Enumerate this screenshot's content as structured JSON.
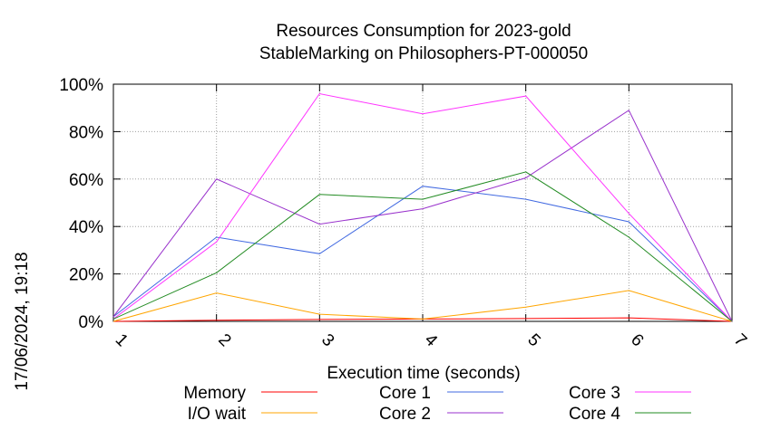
{
  "chart_data": {
    "type": "line",
    "title": "Resources Consumption for 2023-gold",
    "subtitle": "StableMarking on Philosophers-PT-000050",
    "xlabel": "Execution time (seconds)",
    "ylabel": "",
    "timestamp": "17/06/2024, 19:18",
    "x": [
      1,
      2,
      3,
      4,
      5,
      6,
      7
    ],
    "x_ticks": [
      "1",
      "2",
      "3",
      "4",
      "5",
      "6",
      "7"
    ],
    "y_ticks": [
      "0%",
      "20%",
      "40%",
      "60%",
      "80%",
      "100%"
    ],
    "ylim": [
      0,
      100
    ],
    "xlim": [
      1,
      7
    ],
    "grid": true,
    "legend_position": "bottom",
    "series": [
      {
        "name": "Memory",
        "color": "#ff0000",
        "values": [
          0,
          0.5,
          0.8,
          1,
          1.2,
          1.5,
          0
        ]
      },
      {
        "name": "I/O wait",
        "color": "#ffa500",
        "values": [
          0,
          12,
          3,
          1,
          6,
          13,
          0
        ]
      },
      {
        "name": "Core 1",
        "color": "#4169e1",
        "values": [
          2,
          35.5,
          28.5,
          57,
          51.5,
          42,
          0
        ]
      },
      {
        "name": "Core 2",
        "color": "#9932cc",
        "values": [
          2,
          60,
          41,
          47.5,
          60.5,
          89,
          0
        ]
      },
      {
        "name": "Core 3",
        "color": "#ff33ff",
        "values": [
          1,
          33.5,
          96,
          87.5,
          95,
          45.5,
          0
        ]
      },
      {
        "name": "Core 4",
        "color": "#228b22",
        "values": [
          1,
          20.5,
          53.5,
          51.5,
          63,
          35.5,
          0
        ]
      }
    ]
  }
}
